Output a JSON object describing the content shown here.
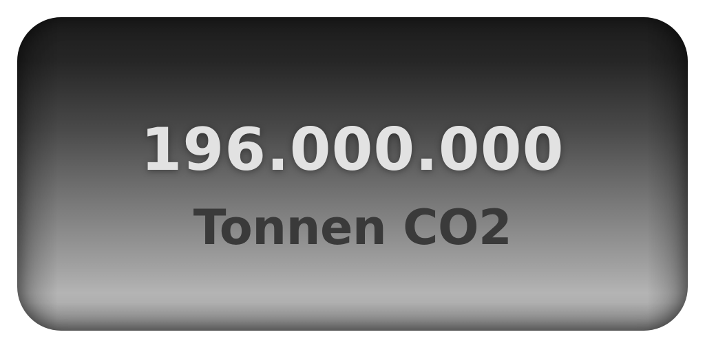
{
  "stat": {
    "value": "196.000.000",
    "unit": "Tonnen CO2"
  },
  "colors": {
    "value_text": "#e2e2e2",
    "unit_text": "#3a3a3a",
    "card_top": "#1c1c1c",
    "card_bottom": "#b4b4b4",
    "background": "#ffffff"
  }
}
